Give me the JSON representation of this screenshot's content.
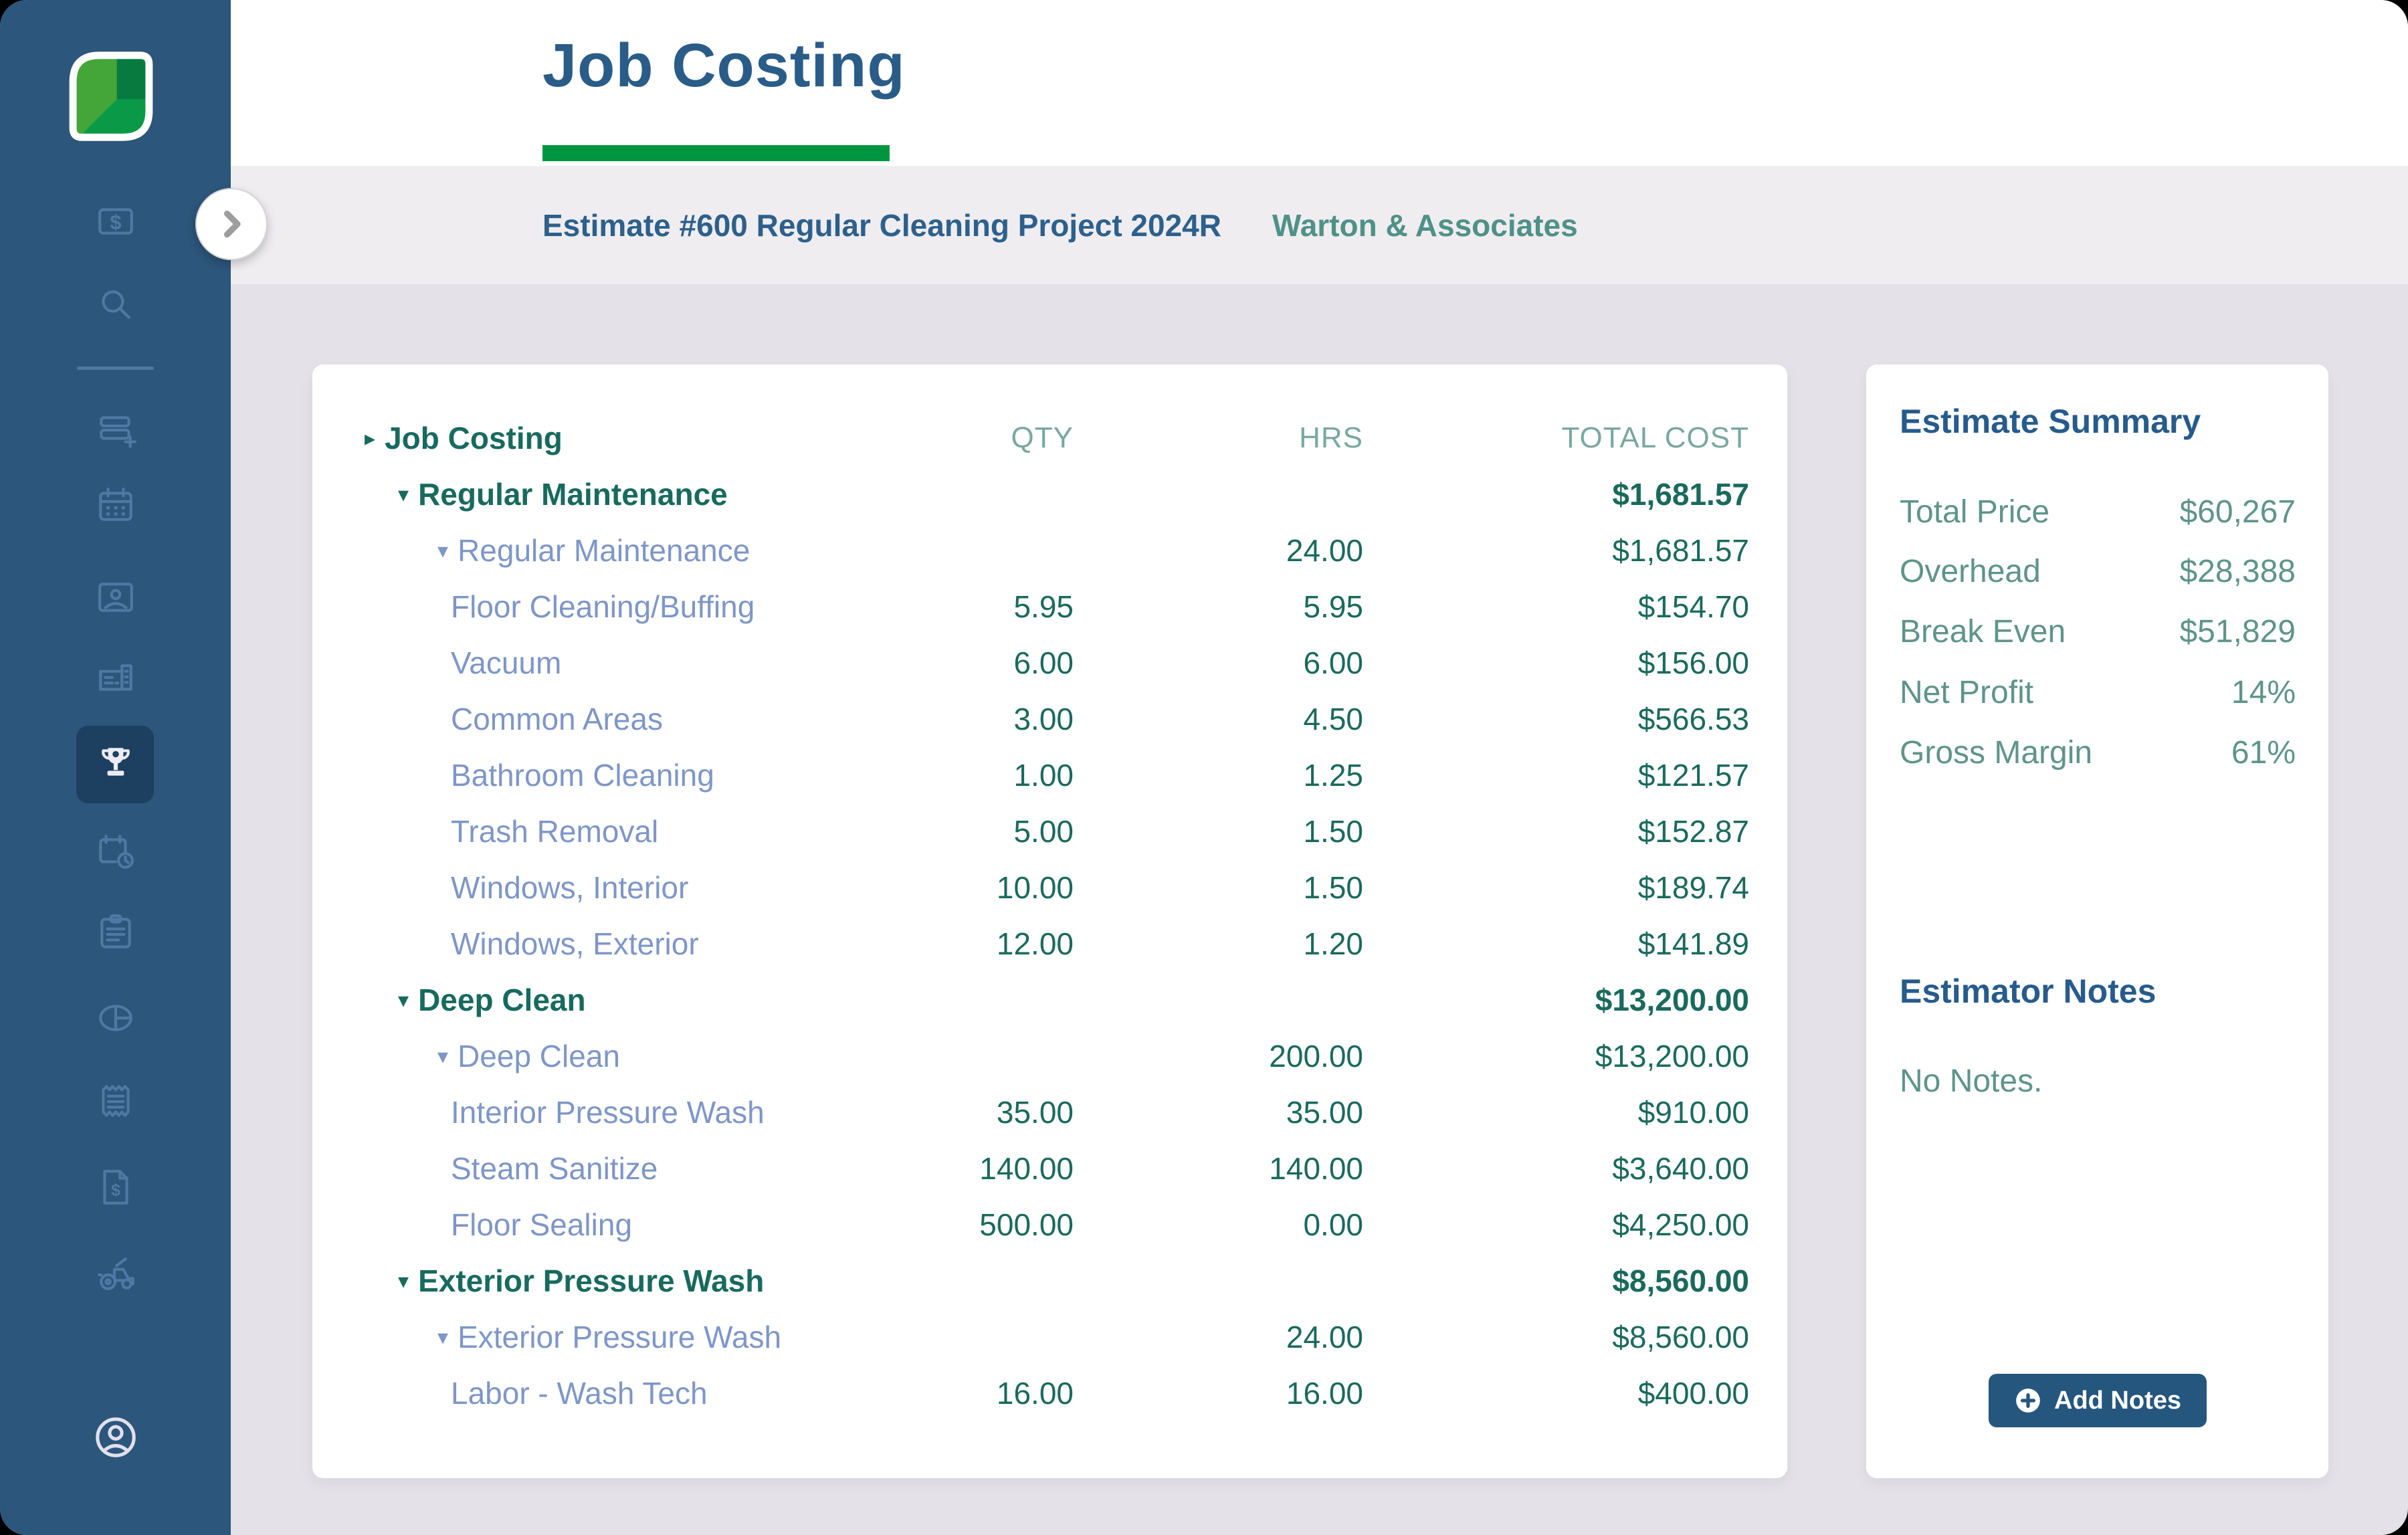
{
  "app": {
    "name": "Job Costing"
  },
  "colors": {
    "sidebar_bg": "#2C567B",
    "sidebar_active_bg": "#1D3F60",
    "sidebar_icon": "#4E79A3",
    "accent_green": "#009640",
    "title_blue": "#2A5C88",
    "heading_blue": "#275B8C",
    "teal_dark": "#186A5E",
    "teal_value": "#1A6A5C",
    "teal_header": "#79A8A0",
    "teal_summary": "#5E948A",
    "periwinkle": "#7E96C8",
    "button_blue": "#25567E",
    "breadcrumb_bg": "#EFEDF0",
    "main_bg": "#E5E1E8"
  },
  "header": {
    "title": "Job Costing",
    "help_icon": "question-circle-icon"
  },
  "breadcrumb": {
    "estimate": "Estimate #600 Regular Cleaning Project 2024R",
    "client": "Warton & Associates",
    "collapse_icon": "chevron-right-icon"
  },
  "sidebar": {
    "logo_icon": "leaf-logo-icon",
    "items": [
      {
        "icon": "money-card-icon",
        "active": false
      },
      {
        "icon": "search-icon",
        "active": false
      },
      {
        "icon": "add-list-icon",
        "active": false
      },
      {
        "icon": "calendar-icon",
        "active": false
      },
      {
        "icon": "photo-badge-icon",
        "active": false
      },
      {
        "icon": "building-icon",
        "active": false
      },
      {
        "icon": "trophy-icon",
        "active": true
      },
      {
        "icon": "calendar-clock-icon",
        "active": false
      },
      {
        "icon": "clipboard-icon",
        "active": false
      },
      {
        "icon": "pie-chart-icon",
        "active": false
      },
      {
        "icon": "receipt-icon",
        "active": false
      },
      {
        "icon": "invoice-dollar-icon",
        "active": false
      },
      {
        "icon": "tractor-icon",
        "active": false
      },
      {
        "icon": "user-account-icon",
        "active": false
      }
    ]
  },
  "table": {
    "header": {
      "name": "Job Costing",
      "qty": "QTY",
      "hrs": "HRS",
      "cost": "TOTAL COST"
    },
    "rows": [
      {
        "level": 1,
        "arrow": "down",
        "label": "Regular Maintenance",
        "qty": "",
        "hrs": "",
        "cost": "$1,681.57",
        "group": true
      },
      {
        "level": 2,
        "arrow": "down",
        "label": "Regular Maintenance",
        "qty": "",
        "hrs": "24.00",
        "cost": "$1,681.57",
        "group": false
      },
      {
        "level": 3,
        "arrow": "",
        "label": "Floor Cleaning/Buffing",
        "qty": "5.95",
        "hrs": "5.95",
        "cost": "$154.70",
        "group": false
      },
      {
        "level": 3,
        "arrow": "",
        "label": "Vacuum",
        "qty": "6.00",
        "hrs": "6.00",
        "cost": "$156.00",
        "group": false
      },
      {
        "level": 3,
        "arrow": "",
        "label": "Common Areas",
        "qty": "3.00",
        "hrs": "4.50",
        "cost": "$566.53",
        "group": false
      },
      {
        "level": 3,
        "arrow": "",
        "label": "Bathroom Cleaning",
        "qty": "1.00",
        "hrs": "1.25",
        "cost": "$121.57",
        "group": false
      },
      {
        "level": 3,
        "arrow": "",
        "label": "Trash Removal",
        "qty": "5.00",
        "hrs": "1.50",
        "cost": "$152.87",
        "group": false
      },
      {
        "level": 3,
        "arrow": "",
        "label": "Windows, Interior",
        "qty": "10.00",
        "hrs": "1.50",
        "cost": "$189.74",
        "group": false
      },
      {
        "level": 3,
        "arrow": "",
        "label": "Windows, Exterior",
        "qty": "12.00",
        "hrs": "1.20",
        "cost": "$141.89",
        "group": false
      },
      {
        "level": 1,
        "arrow": "down",
        "label": "Deep Clean",
        "qty": "",
        "hrs": "",
        "cost": "$13,200.00",
        "group": true
      },
      {
        "level": 2,
        "arrow": "down",
        "label": "Deep Clean",
        "qty": "",
        "hrs": "200.00",
        "cost": "$13,200.00",
        "group": false
      },
      {
        "level": 3,
        "arrow": "",
        "label": "Interior Pressure Wash",
        "qty": "35.00",
        "hrs": "35.00",
        "cost": "$910.00",
        "group": false
      },
      {
        "level": 3,
        "arrow": "",
        "label": "Steam Sanitize",
        "qty": "140.00",
        "hrs": "140.00",
        "cost": "$3,640.00",
        "group": false
      },
      {
        "level": 3,
        "arrow": "",
        "label": "Floor Sealing",
        "qty": "500.00",
        "hrs": "0.00",
        "cost": "$4,250.00",
        "group": false
      },
      {
        "level": 1,
        "arrow": "down",
        "label": "Exterior Pressure Wash",
        "qty": "",
        "hrs": "",
        "cost": "$8,560.00",
        "group": true
      },
      {
        "level": 2,
        "arrow": "down",
        "label": "Exterior Pressure Wash",
        "qty": "",
        "hrs": "24.00",
        "cost": "$8,560.00",
        "group": false
      },
      {
        "level": 3,
        "arrow": "",
        "label": "Labor - Wash Tech",
        "qty": "16.00",
        "hrs": "16.00",
        "cost": "$400.00",
        "group": false
      }
    ]
  },
  "summary": {
    "title": "Estimate Summary",
    "rows": [
      {
        "label": "Total Price",
        "value": "$60,267"
      },
      {
        "label": "Overhead",
        "value": "$28,388"
      },
      {
        "label": "Break Even",
        "value": "$51,829"
      },
      {
        "label": "Net Profit",
        "value": "14%"
      },
      {
        "label": "Gross Margin",
        "value": "61%"
      }
    ]
  },
  "notes": {
    "title": "Estimator Notes",
    "empty": "No Notes.",
    "add_button": "Add Notes",
    "add_icon": "plus-circle-icon"
  }
}
